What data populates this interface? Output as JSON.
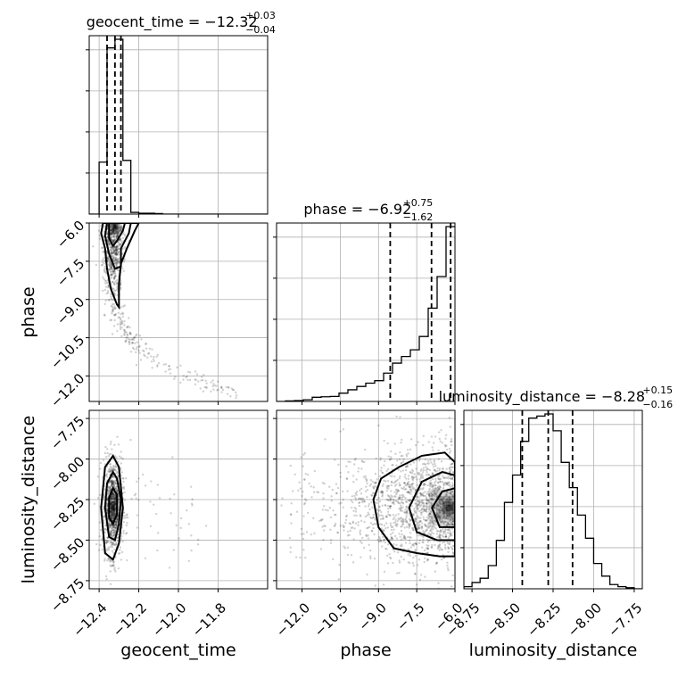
{
  "chart_data": {
    "type": "corner",
    "parameters": [
      "geocent_time",
      "phase",
      "luminosity_distance"
    ],
    "axis_labels": {
      "geocent_time": "geocent_time",
      "phase": "phase",
      "luminosity_distance": "luminosity_distance"
    },
    "grid": true,
    "ranges": {
      "geocent_time": [
        -12.45,
        -11.55
      ],
      "phase": [
        -13.0,
        -6.0
      ],
      "luminosity_distance": [
        -8.8,
        -7.7
      ]
    },
    "ticks": {
      "geocent_time": [
        -12.4,
        -12.2,
        -12.0,
        -11.8
      ],
      "phase": [
        -12.0,
        -10.5,
        -9.0,
        -7.5,
        -6.0
      ],
      "luminosity_distance": [
        -8.75,
        -8.5,
        -8.25,
        -8.0,
        -7.75
      ]
    },
    "tick_labels": {
      "geocent_time": [
        "−12.4",
        "−12.2",
        "−12.0",
        "−11.8"
      ],
      "phase": [
        "−12.0",
        "−10.5",
        "−9.0",
        "−7.5",
        "−6.0"
      ],
      "luminosity_distance": [
        "−8.75",
        "−8.50",
        "−8.25",
        "−8.00",
        "−7.75"
      ]
    },
    "titles": [
      {
        "param": "geocent_time",
        "text": "geocent_time = −12.32",
        "upper": "+0.03",
        "lower": "−0.04"
      },
      {
        "param": "phase",
        "text": "phase = −6.92",
        "upper": "+0.75",
        "lower": "−1.62"
      },
      {
        "param": "luminosity_distance",
        "text": "luminosity_distance = −8.28",
        "upper": "+0.15",
        "lower": "−0.16"
      }
    ],
    "quantiles": {
      "geocent_time": [
        -12.36,
        -12.32,
        -12.29
      ],
      "phase": [
        -8.54,
        -6.92,
        -6.17
      ],
      "luminosity_distance": [
        -8.44,
        -8.28,
        -8.13
      ]
    },
    "histograms": {
      "geocent_time": {
        "edges": [
          -12.45,
          -12.4,
          -12.36,
          -12.32,
          -12.28,
          -12.24,
          -12.2,
          -12.16,
          -12.12,
          -12.08,
          -12.04,
          -12.0,
          -11.96,
          -11.92,
          -11.88,
          -11.84,
          -11.8,
          -11.76,
          -11.72,
          -11.68,
          -11.64,
          -11.6,
          -11.55
        ],
        "counts": [
          0,
          300,
          960,
          1010,
          310,
          10,
          5,
          5,
          3,
          0,
          0,
          0,
          0,
          0,
          0,
          0,
          0,
          0,
          0,
          0,
          0,
          0
        ]
      },
      "phase": {
        "edges": [
          -13.0,
          -12.65,
          -12.3,
          -11.95,
          -11.6,
          -11.25,
          -10.9,
          -10.55,
          -10.2,
          -9.85,
          -9.5,
          -9.15,
          -8.8,
          -8.45,
          -8.1,
          -7.75,
          -7.4,
          -7.05,
          -6.7,
          -6.35,
          -6.0
        ],
        "counts": [
          0,
          3,
          5,
          10,
          25,
          28,
          30,
          50,
          70,
          90,
          110,
          125,
          170,
          230,
          270,
          310,
          390,
          560,
          750,
          1050
        ]
      },
      "luminosity_distance": {
        "edges": [
          -8.8,
          -8.75,
          -8.7,
          -8.65,
          -8.6,
          -8.55,
          -8.5,
          -8.45,
          -8.4,
          -8.35,
          -8.3,
          -8.25,
          -8.2,
          -8.15,
          -8.1,
          -8.05,
          -8.0,
          -7.95,
          -7.9,
          -7.85,
          -7.8,
          -7.75,
          -7.7
        ],
        "counts": [
          10,
          30,
          50,
          110,
          230,
          410,
          540,
          700,
          810,
          820,
          830,
          750,
          600,
          480,
          350,
          240,
          120,
          60,
          20,
          10,
          5,
          0
        ]
      }
    },
    "contours": {
      "phase_vs_geocent_time": [
        {
          "level": "outer",
          "points": [
            [
              -12.38,
              -6.0
            ],
            [
              -12.39,
              -6.4
            ],
            [
              -12.37,
              -7.0
            ],
            [
              -12.36,
              -7.8
            ],
            [
              -12.34,
              -8.6
            ],
            [
              -12.31,
              -9.2
            ],
            [
              -12.3,
              -9.3
            ],
            [
              -12.3,
              -8.4
            ],
            [
              -12.29,
              -7.6
            ],
            [
              -12.26,
              -7.0
            ],
            [
              -12.22,
              -6.3
            ],
            [
              -12.2,
              -6.0
            ]
          ]
        },
        {
          "level": "middle",
          "points": [
            [
              -12.36,
              -6.0
            ],
            [
              -12.37,
              -6.5
            ],
            [
              -12.35,
              -7.2
            ],
            [
              -12.32,
              -7.8
            ],
            [
              -12.29,
              -7.7
            ],
            [
              -12.29,
              -7.0
            ],
            [
              -12.25,
              -6.4
            ],
            [
              -12.24,
              -6.0
            ]
          ]
        },
        {
          "level": "inner",
          "points": [
            [
              -12.35,
              -6.0
            ],
            [
              -12.35,
              -6.6
            ],
            [
              -12.33,
              -6.9
            ],
            [
              -12.31,
              -6.7
            ],
            [
              -12.28,
              -6.3
            ],
            [
              -12.27,
              -6.0
            ]
          ]
        }
      ],
      "luminosity_distance_vs_geocent_time": [
        {
          "level": "outer",
          "points": [
            [
              -12.33,
              -7.98
            ],
            [
              -12.37,
              -8.05
            ],
            [
              -12.39,
              -8.3
            ],
            [
              -12.37,
              -8.58
            ],
            [
              -12.33,
              -8.62
            ],
            [
              -12.3,
              -8.52
            ],
            [
              -12.28,
              -8.3
            ],
            [
              -12.3,
              -8.05
            ]
          ]
        },
        {
          "level": "middle",
          "points": [
            [
              -12.33,
              -8.08
            ],
            [
              -12.36,
              -8.15
            ],
            [
              -12.37,
              -8.3
            ],
            [
              -12.35,
              -8.48
            ],
            [
              -12.32,
              -8.5
            ],
            [
              -12.3,
              -8.4
            ],
            [
              -12.29,
              -8.25
            ],
            [
              -12.31,
              -8.12
            ]
          ]
        },
        {
          "level": "inner",
          "points": [
            [
              -12.33,
              -8.18
            ],
            [
              -12.35,
              -8.24
            ],
            [
              -12.35,
              -8.36
            ],
            [
              -12.33,
              -8.4
            ],
            [
              -12.31,
              -8.34
            ],
            [
              -12.31,
              -8.22
            ]
          ]
        }
      ],
      "luminosity_distance_vs_phase": [
        {
          "level": "outer",
          "points": [
            [
              -6.0,
              -8.02
            ],
            [
              -6.4,
              -7.96
            ],
            [
              -7.3,
              -7.98
            ],
            [
              -8.2,
              -8.05
            ],
            [
              -8.9,
              -8.12
            ],
            [
              -9.2,
              -8.25
            ],
            [
              -9.0,
              -8.42
            ],
            [
              -8.4,
              -8.55
            ],
            [
              -7.5,
              -8.58
            ],
            [
              -6.6,
              -8.6
            ],
            [
              -6.0,
              -8.6
            ]
          ]
        },
        {
          "level": "middle",
          "points": [
            [
              -6.0,
              -8.1
            ],
            [
              -6.5,
              -8.08
            ],
            [
              -7.3,
              -8.14
            ],
            [
              -7.8,
              -8.3
            ],
            [
              -7.5,
              -8.45
            ],
            [
              -6.7,
              -8.5
            ],
            [
              -6.0,
              -8.5
            ]
          ]
        },
        {
          "level": "inner",
          "points": [
            [
              -6.0,
              -8.18
            ],
            [
              -6.5,
              -8.2
            ],
            [
              -6.9,
              -8.3
            ],
            [
              -6.6,
              -8.42
            ],
            [
              -6.0,
              -8.42
            ]
          ]
        }
      ]
    },
    "density_peaks": {
      "phase_vs_geocent_time": [
        -12.32,
        -6.15
      ],
      "luminosity_distance_vs_geocent_time": [
        -12.33,
        -8.3
      ],
      "luminosity_distance_vs_phase": [
        -6.2,
        -8.3
      ]
    }
  }
}
